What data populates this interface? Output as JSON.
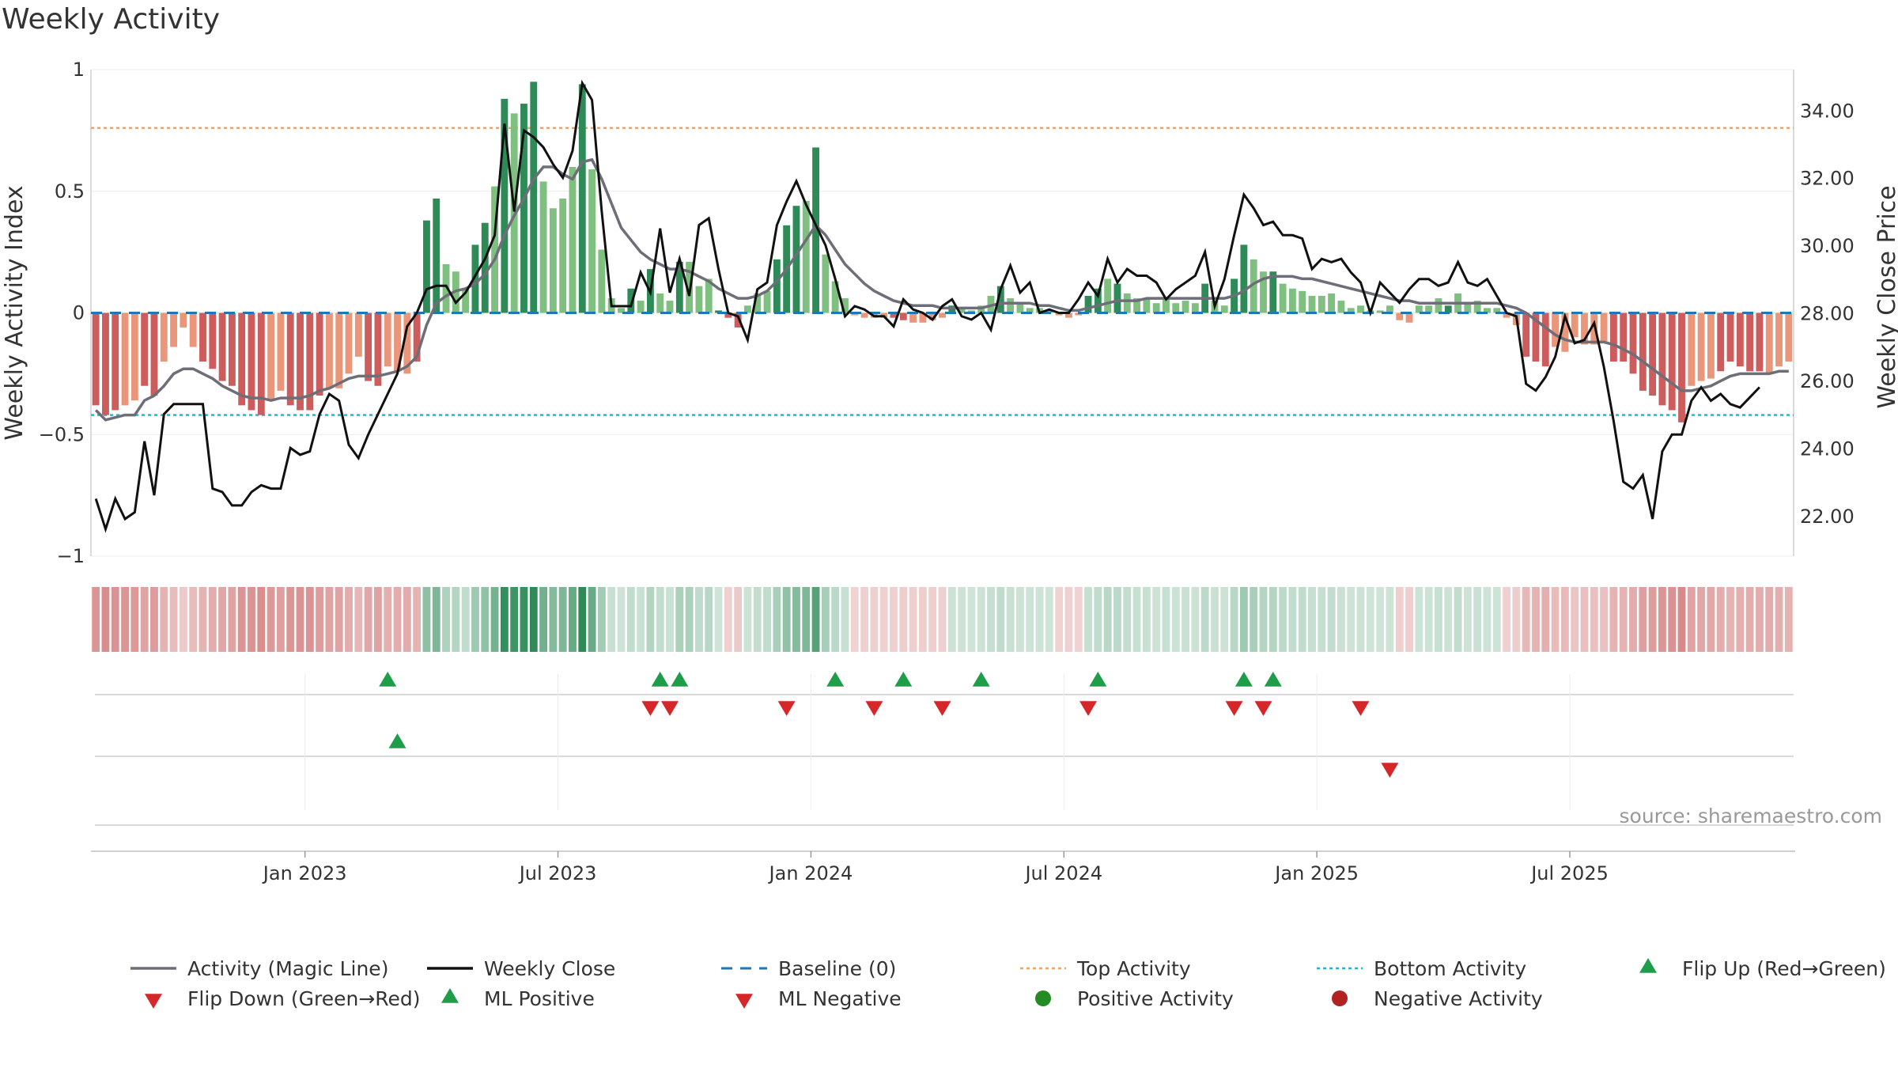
{
  "title": "Weekly Activity",
  "source": "source: sharemaestro.com",
  "colors": {
    "magic": "#6e6e78",
    "close": "#111111",
    "baseline": "#1f77b4",
    "top": "#f4a261",
    "bottom": "#17becf",
    "green": "#2e8b57",
    "lightgreen": "#7fbf7f",
    "red": "#cd5c5c",
    "lightred": "#e9967a",
    "flipup": "#1f9e4a",
    "flipdown": "#d62728"
  },
  "chart_data": {
    "type": "bar+line",
    "x_ticks": [
      "Jan 2023",
      "Jul 2023",
      "Jan 2024",
      "Jul 2024",
      "Jan 2025",
      "Jul 2025"
    ],
    "ylabel": "Weekly Activity Index",
    "y2label": "Weekly Close Price",
    "ylim": [
      -1,
      1
    ],
    "y_ticks": [
      "1",
      "0.5",
      "0",
      "−0.5",
      "−1"
    ],
    "y2lim": [
      20.8,
      35.2
    ],
    "y2_ticks": [
      "34.00",
      "32.00",
      "30.00",
      "28.00",
      "26.00",
      "24.00",
      "22.00"
    ],
    "top_activity": 0.76,
    "bottom_activity": -0.42,
    "activity": [
      -0.38,
      -0.42,
      -0.4,
      -0.38,
      -0.36,
      -0.3,
      -0.34,
      -0.2,
      -0.14,
      -0.06,
      -0.14,
      -0.2,
      -0.23,
      -0.28,
      -0.3,
      -0.38,
      -0.4,
      -0.42,
      -0.36,
      -0.32,
      -0.38,
      -0.4,
      -0.4,
      -0.34,
      -0.31,
      -0.31,
      -0.25,
      -0.18,
      -0.28,
      -0.3,
      -0.22,
      -0.24,
      -0.25,
      -0.2,
      0.38,
      0.47,
      0.2,
      0.17,
      0.1,
      0.28,
      0.37,
      0.52,
      0.88,
      0.82,
      0.86,
      0.95,
      0.54,
      0.43,
      0.47,
      0.6,
      0.94,
      0.59,
      0.26,
      0.06,
      0.02,
      0.1,
      0.05,
      0.18,
      0.08,
      0.05,
      0.21,
      0.21,
      0.11,
      0.14,
      0.01,
      -0.02,
      -0.06,
      0.03,
      0.08,
      0.09,
      0.22,
      0.36,
      0.44,
      0.46,
      0.68,
      0.24,
      0.13,
      0.06,
      -0.01,
      -0.02,
      -0.02,
      -0.02,
      -0.02,
      -0.03,
      -0.04,
      -0.04,
      -0.03,
      -0.02,
      0.03,
      0.02,
      0.01,
      0.03,
      0.07,
      0.11,
      0.06,
      0.04,
      0.02,
      0.02,
      0.01,
      -0.01,
      -0.02,
      -0.01,
      0.07,
      0.1,
      0.14,
      0.12,
      0.08,
      0.06,
      0.06,
      0.04,
      0.06,
      0.04,
      0.05,
      0.04,
      0.12,
      0.05,
      0.03,
      0.14,
      0.28,
      0.22,
      0.17,
      0.17,
      0.12,
      0.1,
      0.09,
      0.07,
      0.07,
      0.08,
      0.05,
      0.02,
      0.03,
      0.01,
      0.01,
      0.03,
      -0.03,
      -0.04,
      0.03,
      0.03,
      0.06,
      0.03,
      0.08,
      0.04,
      0.05,
      0.02,
      0.02,
      -0.02,
      -0.05,
      -0.18,
      -0.2,
      -0.22,
      -0.14,
      -0.16,
      -0.1,
      -0.13,
      -0.13,
      -0.12,
      -0.2,
      -0.2,
      -0.25,
      -0.32,
      -0.34,
      -0.38,
      -0.4,
      -0.45,
      -0.3,
      -0.28,
      -0.27,
      -0.24,
      -0.2,
      -0.22,
      -0.24,
      -0.24,
      -0.25,
      -0.22,
      -0.2
    ],
    "bar_shade": [
      "d",
      "d",
      "d",
      "l",
      "l",
      "d",
      "d",
      "l",
      "l",
      "l",
      "l",
      "d",
      "d",
      "d",
      "d",
      "d",
      "d",
      "d",
      "l",
      "l",
      "d",
      "d",
      "d",
      "d",
      "l",
      "l",
      "l",
      "l",
      "d",
      "d",
      "l",
      "l",
      "l",
      "d",
      "d",
      "d",
      "l",
      "l",
      "l",
      "d",
      "d",
      "l",
      "d",
      "l",
      "d",
      "d",
      "l",
      "l",
      "l",
      "l",
      "d",
      "l",
      "l",
      "l",
      "l",
      "d",
      "l",
      "d",
      "l",
      "l",
      "d",
      "l",
      "l",
      "l",
      "d",
      "d",
      "d",
      "l",
      "l",
      "l",
      "d",
      "d",
      "d",
      "l",
      "d",
      "l",
      "l",
      "l",
      "l",
      "l",
      "l",
      "l",
      "d",
      "d",
      "l",
      "l",
      "l",
      "l",
      "d",
      "l",
      "l",
      "l",
      "l",
      "d",
      "l",
      "l",
      "l",
      "l",
      "l",
      "l",
      "l",
      "l",
      "d",
      "d",
      "l",
      "d",
      "l",
      "l",
      "l",
      "l",
      "l",
      "l",
      "l",
      "l",
      "d",
      "l",
      "l",
      "d",
      "d",
      "l",
      "l",
      "d",
      "l",
      "l",
      "l",
      "l",
      "l",
      "l",
      "l",
      "l",
      "l",
      "l",
      "l",
      "l",
      "l",
      "l",
      "l",
      "l",
      "l",
      "d",
      "l",
      "l",
      "l",
      "l",
      "l",
      "l",
      "l",
      "d",
      "d",
      "d",
      "l",
      "l",
      "l",
      "l",
      "l",
      "l",
      "d",
      "d",
      "d",
      "d",
      "d",
      "d",
      "d",
      "d",
      "l",
      "l",
      "l",
      "d",
      "d",
      "d",
      "d",
      "d",
      "l",
      "l"
    ],
    "magic_line": [
      -0.4,
      -0.44,
      -0.43,
      -0.42,
      -0.42,
      -0.36,
      -0.34,
      -0.3,
      -0.25,
      -0.23,
      -0.23,
      -0.25,
      -0.27,
      -0.3,
      -0.32,
      -0.34,
      -0.35,
      -0.35,
      -0.36,
      -0.35,
      -0.35,
      -0.35,
      -0.34,
      -0.32,
      -0.31,
      -0.29,
      -0.27,
      -0.26,
      -0.26,
      -0.26,
      -0.25,
      -0.24,
      -0.22,
      -0.18,
      -0.05,
      0.04,
      0.07,
      0.09,
      0.1,
      0.12,
      0.16,
      0.22,
      0.32,
      0.4,
      0.47,
      0.55,
      0.6,
      0.6,
      0.57,
      0.55,
      0.62,
      0.63,
      0.55,
      0.45,
      0.35,
      0.3,
      0.25,
      0.22,
      0.2,
      0.18,
      0.18,
      0.17,
      0.15,
      0.13,
      0.1,
      0.08,
      0.06,
      0.06,
      0.07,
      0.09,
      0.13,
      0.18,
      0.24,
      0.3,
      0.36,
      0.32,
      0.26,
      0.2,
      0.16,
      0.12,
      0.09,
      0.07,
      0.05,
      0.04,
      0.03,
      0.03,
      0.03,
      0.02,
      0.02,
      0.02,
      0.02,
      0.02,
      0.03,
      0.04,
      0.04,
      0.04,
      0.04,
      0.03,
      0.03,
      0.02,
      0.01,
      0.01,
      0.02,
      0.03,
      0.04,
      0.05,
      0.05,
      0.05,
      0.06,
      0.06,
      0.06,
      0.06,
      0.06,
      0.06,
      0.06,
      0.06,
      0.06,
      0.07,
      0.09,
      0.12,
      0.14,
      0.15,
      0.15,
      0.15,
      0.14,
      0.14,
      0.13,
      0.12,
      0.11,
      0.1,
      0.09,
      0.08,
      0.07,
      0.06,
      0.05,
      0.05,
      0.04,
      0.04,
      0.04,
      0.04,
      0.04,
      0.04,
      0.04,
      0.04,
      0.04,
      0.03,
      0.02,
      0.0,
      -0.03,
      -0.06,
      -0.09,
      -0.11,
      -0.12,
      -0.12,
      -0.12,
      -0.12,
      -0.13,
      -0.15,
      -0.17,
      -0.2,
      -0.23,
      -0.26,
      -0.29,
      -0.32,
      -0.32,
      -0.31,
      -0.3,
      -0.28,
      -0.26,
      -0.25,
      -0.25,
      -0.25,
      -0.25,
      -0.24,
      -0.24
    ],
    "weekly_close": [
      22.5,
      21.6,
      22.5,
      21.9,
      22.1,
      24.2,
      22.6,
      25.0,
      25.3,
      25.3,
      25.3,
      25.3,
      22.8,
      22.7,
      22.3,
      22.3,
      22.7,
      22.9,
      22.8,
      22.8,
      24.0,
      23.8,
      23.9,
      25.0,
      25.6,
      25.4,
      24.1,
      23.7,
      24.4,
      25.0,
      25.6,
      26.2,
      27.6,
      28.0,
      28.7,
      28.8,
      28.8,
      28.3,
      28.6,
      29.1,
      29.6,
      30.3,
      33.6,
      31.0,
      33.4,
      33.2,
      32.9,
      32.4,
      32.0,
      32.8,
      34.8,
      34.3,
      31.0,
      28.2,
      28.2,
      28.2,
      29.2,
      28.6,
      30.5,
      28.6,
      29.6,
      28.5,
      30.6,
      30.8,
      29.3,
      28.0,
      27.9,
      27.2,
      28.7,
      28.9,
      30.6,
      31.3,
      31.9,
      31.2,
      30.6,
      30.0,
      29.0,
      27.9,
      28.2,
      28.1,
      27.9,
      27.9,
      27.6,
      28.4,
      28.1,
      28.0,
      27.8,
      28.2,
      28.4,
      27.9,
      27.8,
      28.0,
      27.5,
      28.7,
      29.4,
      28.6,
      28.9,
      28.0,
      28.1,
      28.0,
      28.0,
      28.4,
      28.9,
      28.5,
      29.6,
      28.9,
      29.3,
      29.1,
      29.1,
      28.9,
      28.4,
      28.7,
      28.9,
      29.1,
      29.8,
      28.2,
      29.0,
      30.3,
      31.5,
      31.1,
      30.6,
      30.7,
      30.3,
      30.3,
      30.2,
      29.3,
      29.6,
      29.5,
      29.6,
      29.2,
      28.9,
      28.0,
      28.9,
      28.6,
      28.3,
      28.7,
      29.0,
      29.0,
      28.8,
      28.9,
      29.5,
      28.9,
      28.8,
      29.0,
      28.5,
      28.0,
      27.9,
      25.9,
      25.7,
      26.1,
      26.7,
      27.9,
      27.1,
      27.2,
      27.7,
      26.4,
      24.8,
      23.0,
      22.8,
      23.2,
      21.9,
      23.9,
      24.4,
      24.4,
      25.4,
      25.8,
      25.4,
      25.6,
      25.3,
      25.2,
      25.5,
      25.8
    ],
    "flip_up_weeks": [
      30,
      58,
      60,
      76,
      83,
      91,
      103,
      118,
      121
    ],
    "flip_down_weeks": [
      57,
      59,
      71,
      80,
      87,
      102,
      117,
      120,
      130
    ],
    "ml_positive_weeks": [
      31
    ],
    "ml_negative_weeks": [
      133
    ],
    "legend": [
      {
        "label": "Activity (Magic Line)",
        "kind": "line",
        "color": "#6e6e78"
      },
      {
        "label": "Weekly Close",
        "kind": "line",
        "color": "#111111"
      },
      {
        "label": "Baseline (0)",
        "kind": "dash",
        "color": "#1f77b4"
      },
      {
        "label": "Top Activity",
        "kind": "dot",
        "color": "#f4a261"
      },
      {
        "label": "Bottom Activity",
        "kind": "dot",
        "color": "#17becf"
      },
      {
        "label": "Flip Up (Red→Green)",
        "kind": "tri-up",
        "color": "#1f9e4a"
      },
      {
        "label": "Flip Down (Green→Red)",
        "kind": "tri-down",
        "color": "#d62728"
      },
      {
        "label": "ML Positive",
        "kind": "tri-up",
        "color": "#1f9e4a"
      },
      {
        "label": "ML Negative",
        "kind": "tri-down",
        "color": "#d62728"
      },
      {
        "label": "Positive Activity",
        "kind": "circle",
        "color": "#228b22"
      },
      {
        "label": "Negative Activity",
        "kind": "circle",
        "color": "#b22222"
      }
    ]
  }
}
